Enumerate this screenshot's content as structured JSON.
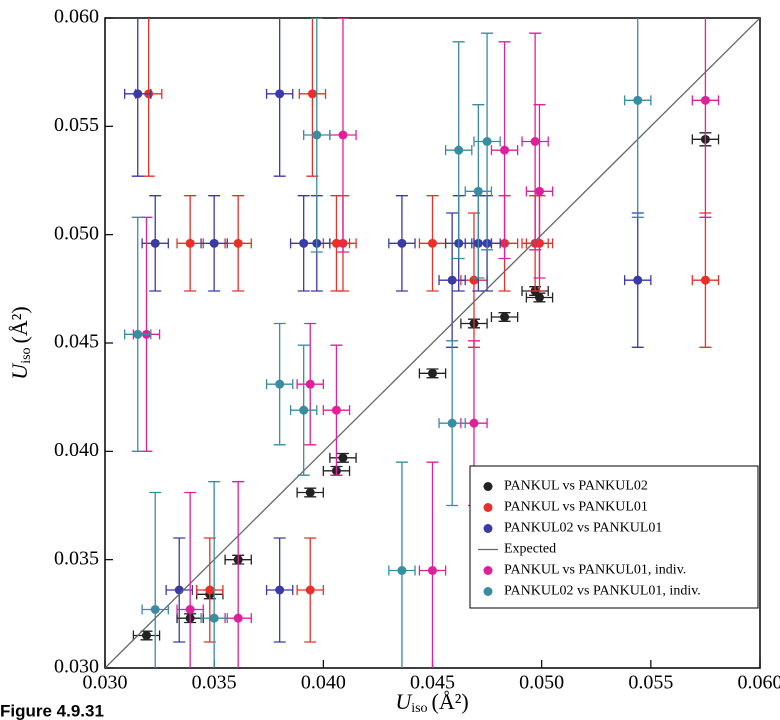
{
  "chart_data": {
    "type": "scatter",
    "x_label": {
      "symbol": "U",
      "subscript": "iso",
      "unit": "(Å²)"
    },
    "y_label": {
      "symbol": "U",
      "subscript": "iso",
      "unit": "(Å²)"
    },
    "caption": "Figure 4.9.31",
    "xlim": [
      0.03,
      0.06
    ],
    "ylim": [
      0.03,
      0.06
    ],
    "xticks": [
      {
        "value": 0.03,
        "label": "0.030"
      },
      {
        "value": 0.035,
        "label": "0.035"
      },
      {
        "value": 0.04,
        "label": "0.040"
      },
      {
        "value": 0.045,
        "label": "0.045"
      },
      {
        "value": 0.05,
        "label": "0.050"
      },
      {
        "value": 0.055,
        "label": "0.055"
      },
      {
        "value": 0.06,
        "label": "0.060"
      }
    ],
    "yticks": [
      {
        "value": 0.03,
        "label": "0.030"
      },
      {
        "value": 0.035,
        "label": "0.035"
      },
      {
        "value": 0.04,
        "label": "0.040"
      },
      {
        "value": 0.045,
        "label": "0.045"
      },
      {
        "value": 0.05,
        "label": "0.050"
      },
      {
        "value": 0.055,
        "label": "0.055"
      },
      {
        "value": 0.06,
        "label": "0.060"
      }
    ],
    "legend": "lower right",
    "series": [
      {
        "name": "PANKUL vs PANKUL02",
        "color": "#222222",
        "x": [
          0.0319,
          0.0339,
          0.0348,
          0.0361,
          0.0394,
          0.0406,
          0.0409,
          0.045,
          0.0469,
          0.0483,
          0.0497,
          0.0499,
          0.0575
        ],
        "values": [
          0.0315,
          0.0323,
          0.0334,
          0.035,
          0.0381,
          0.0391,
          0.0397,
          0.0436,
          0.0459,
          0.0462,
          0.0474,
          0.0471,
          0.0544
        ],
        "xerr": [
          0.0006,
          0.0006,
          0.0006,
          0.0006,
          0.0006,
          0.0006,
          0.0006,
          0.0006,
          0.0006,
          0.0006,
          0.0006,
          0.0006,
          0.0006
        ],
        "yerr": [
          0.0002,
          0.0002,
          0.0002,
          0.0002,
          0.0002,
          0.0002,
          0.0002,
          0.0002,
          0.0002,
          0.0002,
          0.0002,
          0.0002,
          0.0003
        ]
      },
      {
        "name": "PANKUL vs PANKUL01",
        "color": "#e8302a",
        "x": [
          0.032,
          0.0395,
          0.0339,
          0.0361,
          0.0406,
          0.0409,
          0.045,
          0.0483,
          0.0497,
          0.0499,
          0.0469,
          0.0575,
          0.0348,
          0.0394
        ],
        "values": [
          0.0565,
          0.0565,
          0.0496,
          0.0496,
          0.0496,
          0.0496,
          0.0496,
          0.0496,
          0.0496,
          0.0496,
          0.0479,
          0.0479,
          0.0336,
          0.0336
        ],
        "xerr": [
          0.0006,
          0.0006,
          0.0006,
          0.0006,
          0.0006,
          0.0006,
          0.0006,
          0.0006,
          0.0006,
          0.0006,
          0.0006,
          0.0006,
          0.0006,
          0.0006
        ],
        "yerr": [
          0.0038,
          0.0038,
          0.0022,
          0.0022,
          0.0022,
          0.0022,
          0.0022,
          0.0022,
          0.0022,
          0.0022,
          0.0031,
          0.0031,
          0.0024,
          0.0024
        ]
      },
      {
        "name": "PANKUL02 vs PANKUL01",
        "color": "#3a3aa8",
        "x": [
          0.0315,
          0.038,
          0.0323,
          0.035,
          0.0391,
          0.0397,
          0.0436,
          0.0462,
          0.0471,
          0.0475,
          0.0459,
          0.0544,
          0.0334,
          0.038
        ],
        "values": [
          0.0565,
          0.0565,
          0.0496,
          0.0496,
          0.0496,
          0.0496,
          0.0496,
          0.0496,
          0.0496,
          0.0496,
          0.0479,
          0.0479,
          0.0336,
          0.0336
        ],
        "xerr": [
          0.0006,
          0.0006,
          0.0006,
          0.0006,
          0.0006,
          0.0006,
          0.0006,
          0.0006,
          0.0006,
          0.0006,
          0.0006,
          0.0006,
          0.0006,
          0.0006
        ],
        "yerr": [
          0.0038,
          0.0038,
          0.0022,
          0.0022,
          0.0022,
          0.0022,
          0.0022,
          0.0022,
          0.0022,
          0.0022,
          0.0031,
          0.0031,
          0.0024,
          0.0024
        ]
      },
      {
        "name": "Expected",
        "color": "#666666",
        "type": "line",
        "x": [
          0.03,
          0.06
        ],
        "values": [
          0.03,
          0.06
        ]
      },
      {
        "name": "PANKUL vs PANKUL01, indiv.",
        "color": "#e0209a",
        "x": [
          0.0319,
          0.0409,
          0.0575,
          0.0497,
          0.0483,
          0.0499,
          0.0394,
          0.0406,
          0.0469,
          0.045,
          0.0339,
          0.0361
        ],
        "values": [
          0.0454,
          0.0546,
          0.0562,
          0.0543,
          0.0539,
          0.052,
          0.0431,
          0.0419,
          0.0413,
          0.0345,
          0.0327,
          0.0323
        ],
        "xerr": [
          0.0006,
          0.0006,
          0.0006,
          0.0006,
          0.0006,
          0.0006,
          0.0006,
          0.0006,
          0.0006,
          0.0006,
          0.0006,
          0.0006
        ],
        "yerr": [
          0.0054,
          0.0054,
          0.0054,
          0.005,
          0.005,
          0.004,
          0.0028,
          0.003,
          0.0038,
          0.005,
          0.0054,
          0.0063
        ]
      },
      {
        "name": "PANKUL02 vs PANKUL01, indiv.",
        "color": "#3a8ca0",
        "x": [
          0.0315,
          0.0397,
          0.0544,
          0.0475,
          0.0462,
          0.0471,
          0.038,
          0.0391,
          0.0459,
          0.0436,
          0.0323,
          0.035
        ],
        "values": [
          0.0454,
          0.0546,
          0.0562,
          0.0543,
          0.0539,
          0.052,
          0.0431,
          0.0419,
          0.0413,
          0.0345,
          0.0327,
          0.0323
        ],
        "xerr": [
          0.0006,
          0.0006,
          0.0006,
          0.0006,
          0.0006,
          0.0006,
          0.0006,
          0.0006,
          0.0006,
          0.0006,
          0.0006,
          0.0006
        ],
        "yerr": [
          0.0054,
          0.0054,
          0.0054,
          0.005,
          0.005,
          0.004,
          0.0028,
          0.003,
          0.0038,
          0.005,
          0.0054,
          0.0063
        ]
      }
    ]
  }
}
